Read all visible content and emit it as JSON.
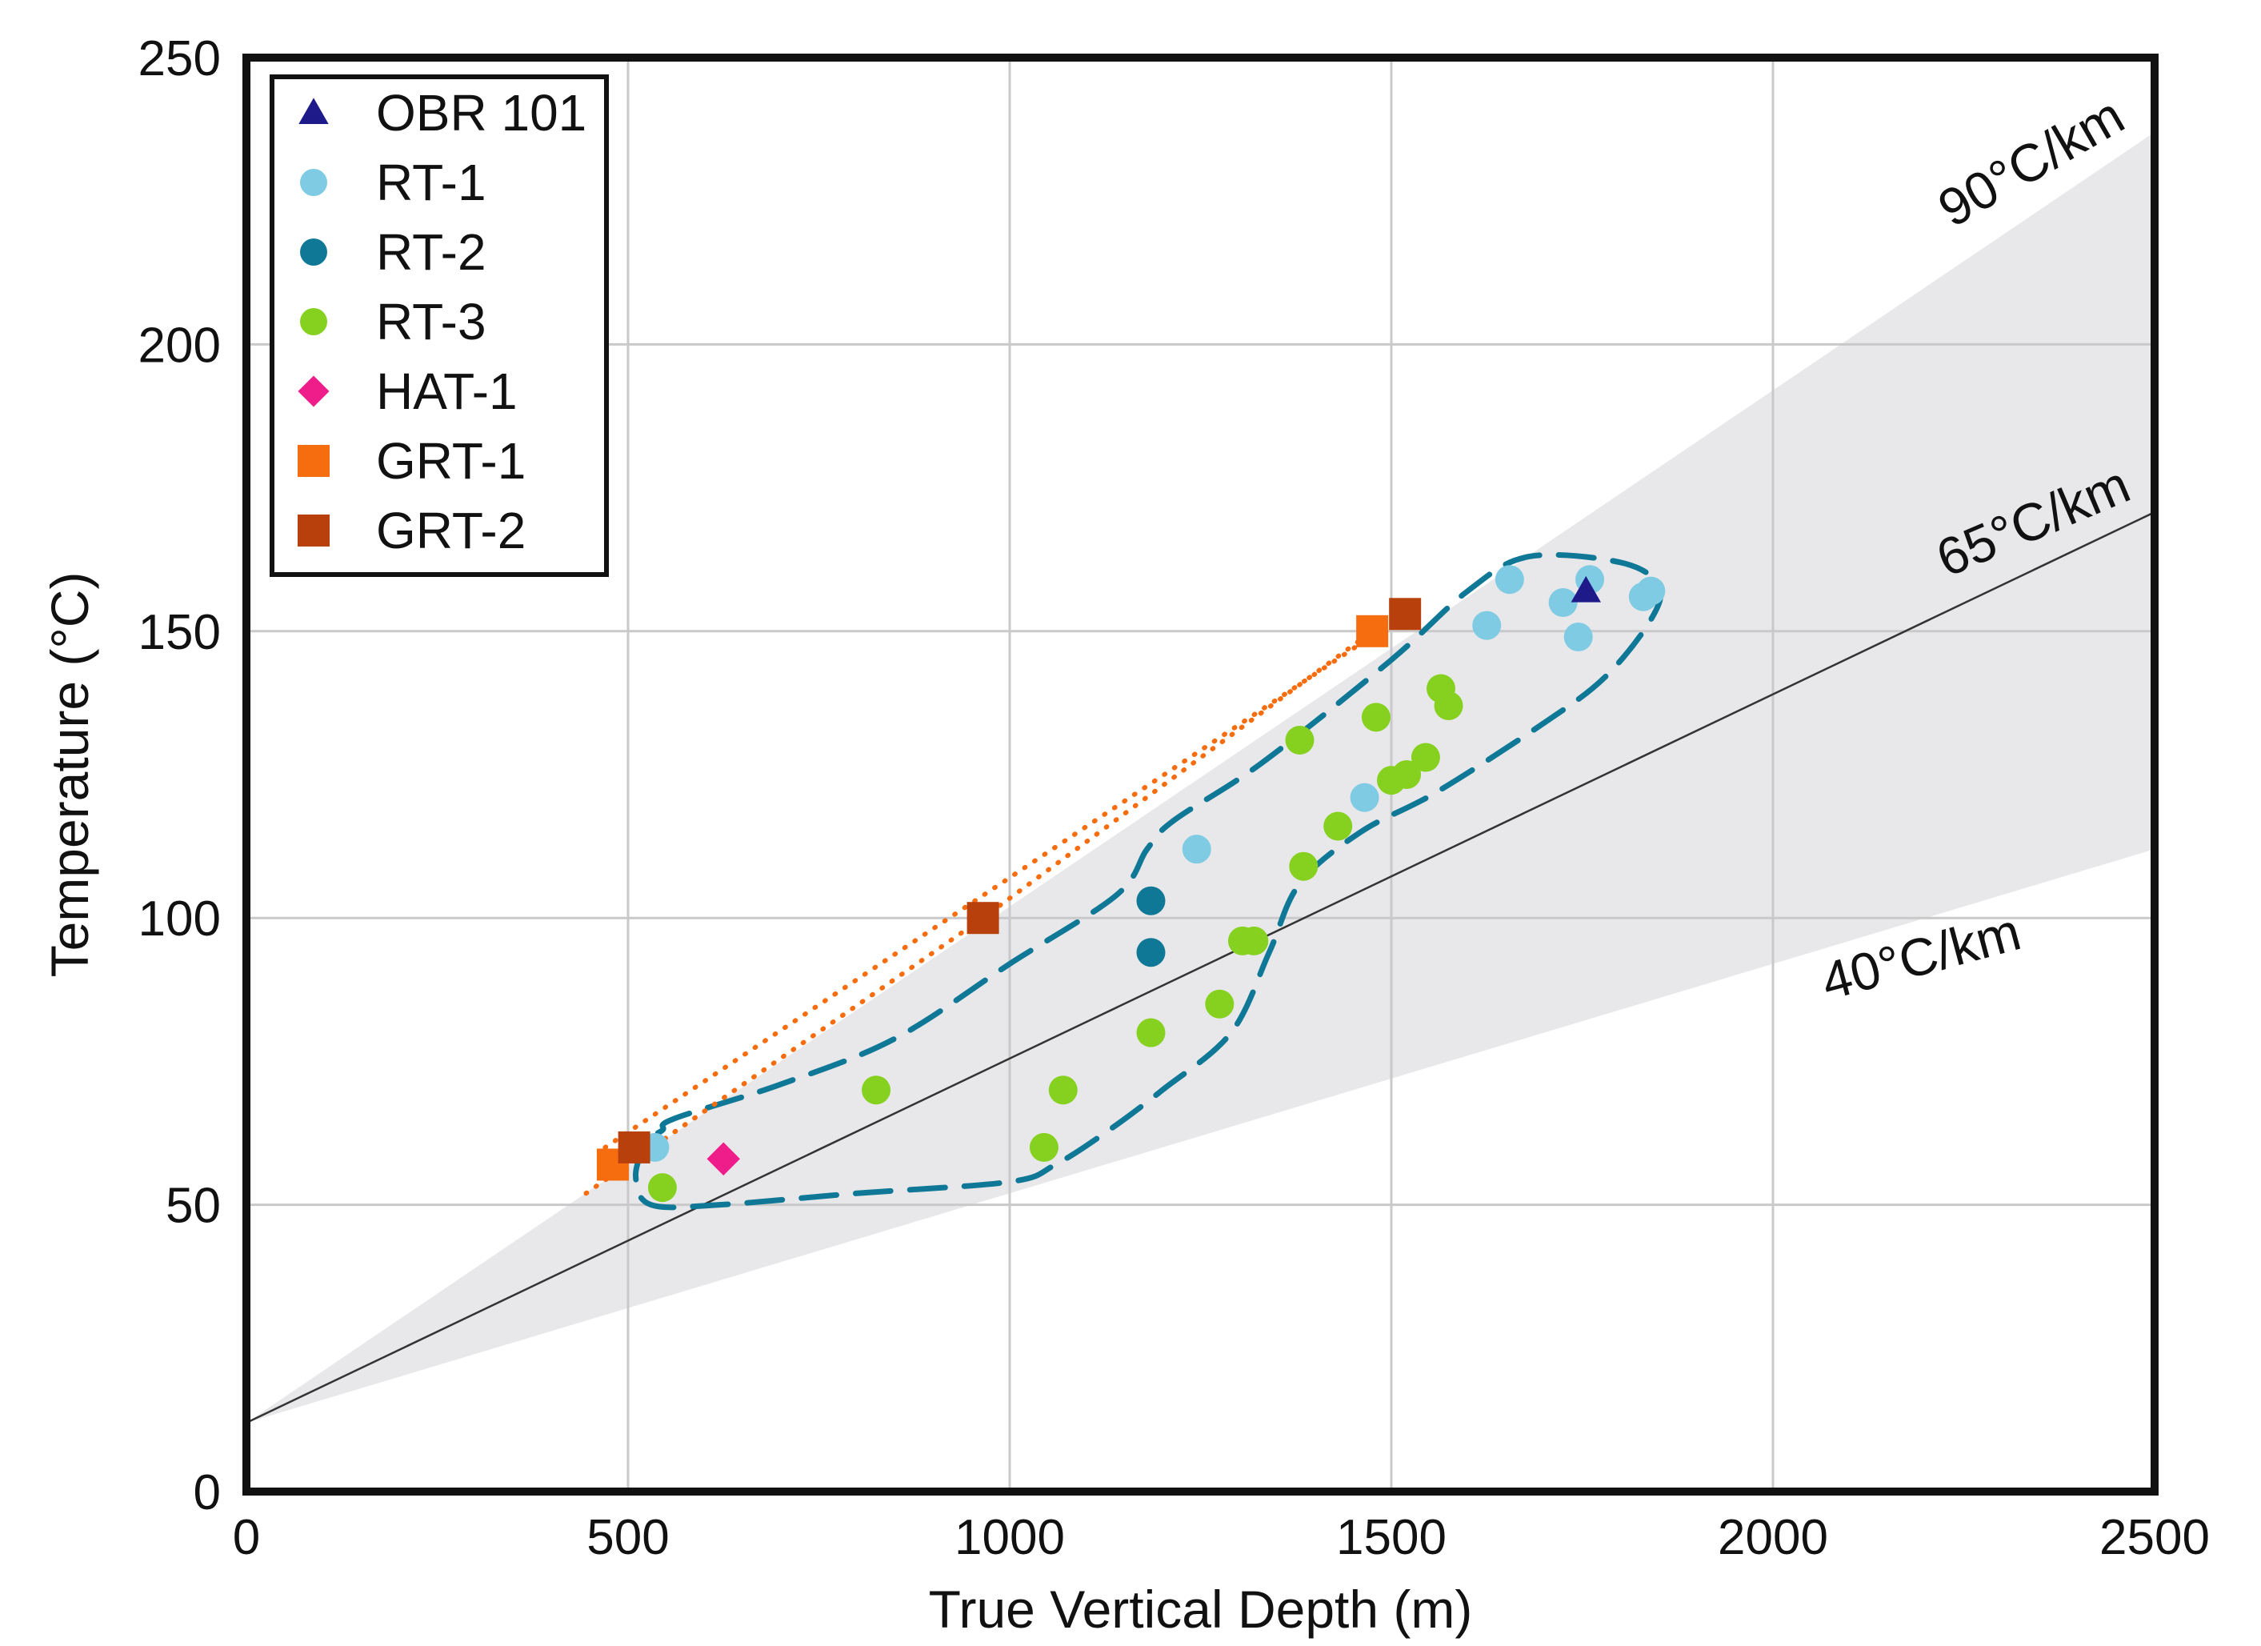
{
  "chart_data": {
    "type": "scatter",
    "title": "",
    "xlabel": "True Vertical Depth (m)",
    "ylabel": "Temperature (°C)",
    "xlim": [
      0,
      2500
    ],
    "ylim": [
      0,
      250
    ],
    "xticks": [
      "0",
      "500",
      "1000",
      "1500",
      "2000",
      "2500"
    ],
    "yticks": [
      "0",
      "50",
      "100",
      "150",
      "200",
      "250"
    ],
    "grid": true,
    "legend_position": "top-left",
    "gradient_envelope": {
      "surface_temperature": 12,
      "low_rate_c_per_km": 40,
      "high_rate_c_per_km": 90
    },
    "gradient_lines": [
      {
        "label": "90°C/km",
        "rate": 90,
        "at_x": 2350
      },
      {
        "label": "65°C/km",
        "rate": 65,
        "at_x": 2350
      },
      {
        "label": "40°C/km",
        "rate": 40,
        "at_x": 2200
      }
    ],
    "reference_line": {
      "intercept": 12,
      "rate": 63.5
    },
    "series": [
      {
        "name": "OBR 101",
        "marker": "triangle",
        "color": "#1f1a8a",
        "points": [
          [
            1755,
            157
          ]
        ]
      },
      {
        "name": "RT-1",
        "marker": "circle",
        "color": "#7ecbe3",
        "points": [
          [
            535,
            60
          ],
          [
            1245,
            112
          ],
          [
            1465,
            121
          ],
          [
            1625,
            151
          ],
          [
            1655,
            159
          ],
          [
            1725,
            155
          ],
          [
            1745,
            149
          ],
          [
            1760,
            159
          ],
          [
            1830,
            156
          ],
          [
            1840,
            157
          ]
        ]
      },
      {
        "name": "RT-2",
        "marker": "circle",
        "color": "#0f7896",
        "points": [
          [
            1185,
            103
          ],
          [
            1185,
            94
          ]
        ]
      },
      {
        "name": "RT-3",
        "marker": "circle",
        "color": "#86d11f",
        "points": [
          [
            545,
            53
          ],
          [
            825,
            70
          ],
          [
            1045,
            60
          ],
          [
            1070,
            70
          ],
          [
            1185,
            80
          ],
          [
            1275,
            85
          ],
          [
            1305,
            96
          ],
          [
            1320,
            96
          ],
          [
            1385,
            109
          ],
          [
            1380,
            131
          ],
          [
            1430,
            116
          ],
          [
            1480,
            135
          ],
          [
            1500,
            124
          ],
          [
            1520,
            125
          ],
          [
            1545,
            128
          ],
          [
            1565,
            140
          ],
          [
            1575,
            137
          ]
        ]
      },
      {
        "name": "HAT-1",
        "marker": "diamond",
        "color": "#ee1d8a",
        "points": [
          [
            625,
            58
          ]
        ]
      },
      {
        "name": "GRT-1",
        "marker": "square",
        "color": "#f66d10",
        "points": [
          [
            480,
            57
          ],
          [
            1475,
            150
          ]
        ]
      },
      {
        "name": "GRT-2",
        "marker": "square",
        "color": "#b8400c",
        "points": [
          [
            508,
            60
          ],
          [
            965,
            100
          ],
          [
            1518,
            153
          ]
        ]
      }
    ],
    "grt_dotted_lines": [
      [
        [
          445,
          52
        ],
        [
          965,
          100
        ],
        [
          1475,
          150
        ]
      ],
      [
        [
          470,
          60
        ],
        [
          1518,
          153
        ]
      ]
    ],
    "rt_envelope": [
      [
        545,
        63
      ],
      [
        560,
        65
      ],
      [
        700,
        71
      ],
      [
        850,
        79
      ],
      [
        1000,
        92
      ],
      [
        1140,
        104
      ],
      [
        1180,
        112
      ],
      [
        1215,
        117
      ],
      [
        1330,
        127
      ],
      [
        1500,
        145
      ],
      [
        1600,
        157
      ],
      [
        1680,
        163
      ],
      [
        1800,
        162
      ],
      [
        1850,
        158
      ],
      [
        1840,
        152
      ],
      [
        1780,
        142
      ],
      [
        1700,
        134
      ],
      [
        1560,
        122
      ],
      [
        1460,
        115
      ],
      [
        1380,
        106
      ],
      [
        1340,
        94
      ],
      [
        1290,
        80
      ],
      [
        1200,
        70
      ],
      [
        1130,
        63
      ],
      [
        1060,
        57
      ],
      [
        1000,
        54
      ],
      [
        800,
        52
      ],
      [
        620,
        50
      ],
      [
        530,
        50
      ],
      [
        510,
        55
      ],
      [
        525,
        61
      ],
      [
        545,
        63
      ]
    ]
  }
}
